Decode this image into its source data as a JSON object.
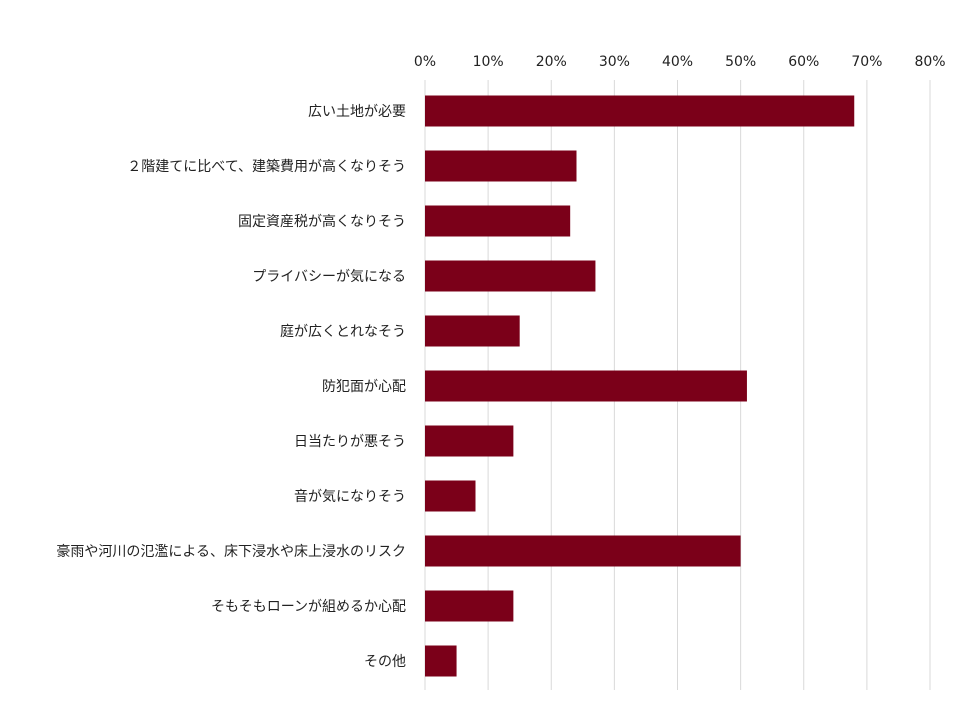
{
  "chart_data": {
    "type": "bar",
    "orientation": "horizontal",
    "categories": [
      "広い土地が必要",
      "２階建てに比べて、建築費用が高くなりそう",
      "固定資産税が高くなりそう",
      "プライバシーが気になる",
      "庭が広くとれなそう",
      "防犯面が心配",
      "日当たりが悪そう",
      "音が気になりそう",
      "豪雨や河川の氾濫による、床下浸水や床上浸水のリスク",
      "そもそもローンが組めるか心配",
      "その他"
    ],
    "values": [
      68,
      24,
      23,
      27,
      15,
      51,
      14,
      8,
      50,
      14,
      5
    ],
    "unit": "%",
    "xlim": [
      0,
      80
    ],
    "xticks": [
      "0%",
      "10%",
      "20%",
      "30%",
      "40%",
      "50%",
      "60%",
      "70%",
      "80%"
    ],
    "x_axis_position": "top",
    "grid": true,
    "legend": "none",
    "bar_color": "#7b0019",
    "grid_color": "#d9d9d9"
  }
}
